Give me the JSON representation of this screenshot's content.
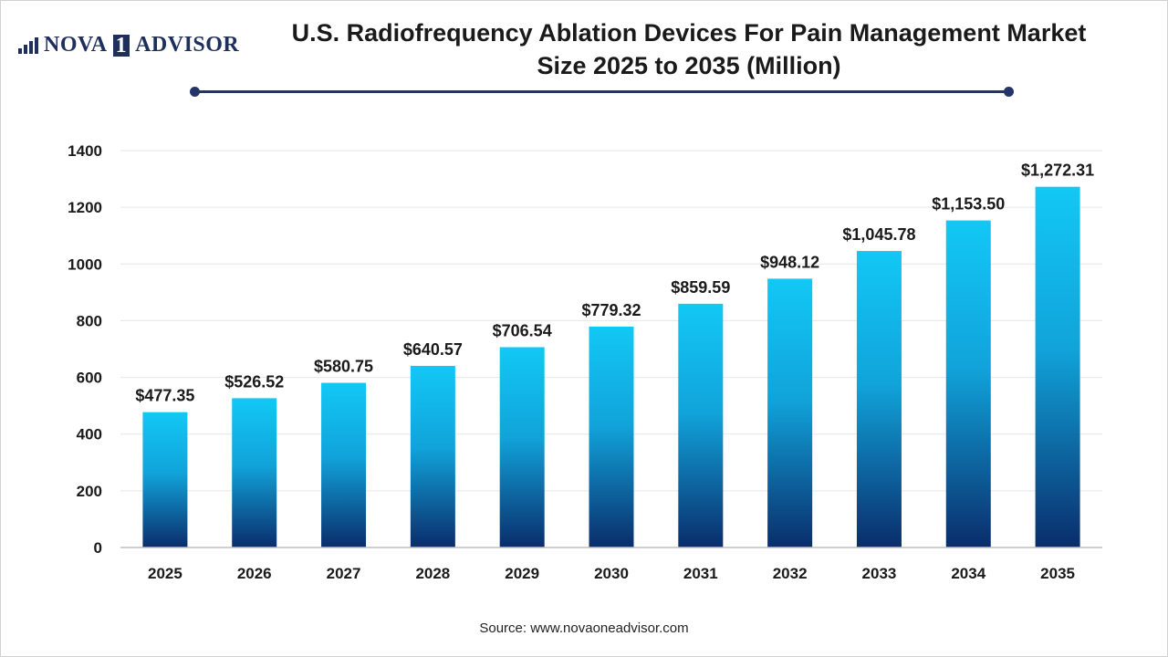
{
  "header": {
    "logo_text_left": "NOVA",
    "logo_text_box": "1",
    "logo_text_right": "ADVISOR",
    "title_line1": "U.S. Radiofrequency Ablation Devices For Pain Management Market",
    "title_line2": "Size 2025 to 2035 (Million)"
  },
  "footer": {
    "source": "Source: www.novaoneadvisor.com"
  },
  "colors": {
    "bar_top": "#12c8f5",
    "bar_bottom": "#0a2d6b",
    "accent": "#24346a"
  },
  "chart_data": {
    "type": "bar",
    "title": "U.S. Radiofrequency Ablation Devices For Pain Management Market Size 2025 to 2035 (Million)",
    "xlabel": "",
    "ylabel": "",
    "categories": [
      "2025",
      "2026",
      "2027",
      "2028",
      "2029",
      "2030",
      "2031",
      "2032",
      "2033",
      "2034",
      "2035"
    ],
    "values": [
      477.35,
      526.52,
      580.75,
      640.57,
      706.54,
      779.32,
      859.59,
      948.12,
      1045.78,
      1153.5,
      1272.31
    ],
    "value_labels": [
      "$477.35",
      "$526.52",
      "$580.75",
      "$640.57",
      "$706.54",
      "$779.32",
      "$859.59",
      "$948.12",
      "$1,045.78",
      "$1,153.50",
      "$1,272.31"
    ],
    "ylim": [
      0,
      1400
    ],
    "yticks": [
      0,
      200,
      400,
      600,
      800,
      1000,
      1200,
      1400
    ],
    "grid": true,
    "legend": "none"
  }
}
